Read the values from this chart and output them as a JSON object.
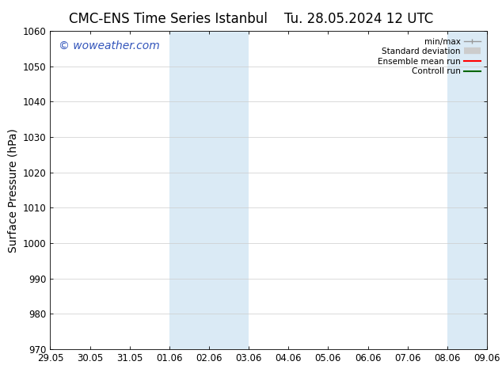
{
  "title_left": "CMC-ENS Time Series Istanbul",
  "title_right": "Tu. 28.05.2024 12 UTC",
  "ylabel": "Surface Pressure (hPa)",
  "ylim": [
    970,
    1060
  ],
  "yticks": [
    970,
    980,
    990,
    1000,
    1010,
    1020,
    1030,
    1040,
    1050,
    1060
  ],
  "xtick_labels": [
    "29.05",
    "30.05",
    "31.05",
    "01.06",
    "02.06",
    "03.06",
    "04.06",
    "05.06",
    "06.06",
    "07.06",
    "08.06",
    "09.06"
  ],
  "xtick_positions": [
    0,
    1,
    2,
    3,
    4,
    5,
    6,
    7,
    8,
    9,
    10,
    11
  ],
  "shaded_regions": [
    {
      "x_start": 3,
      "x_end": 4,
      "color": "#daeaf5"
    },
    {
      "x_start": 4,
      "x_end": 5,
      "color": "#daeaf5"
    },
    {
      "x_start": 10,
      "x_end": 11,
      "color": "#daeaf5"
    }
  ],
  "watermark_text": "© woweather.com",
  "watermark_color": "#3355bb",
  "watermark_fontsize": 10,
  "background_color": "#ffffff",
  "tick_fontsize": 8.5,
  "ylabel_fontsize": 10,
  "title_fontsize": 12
}
